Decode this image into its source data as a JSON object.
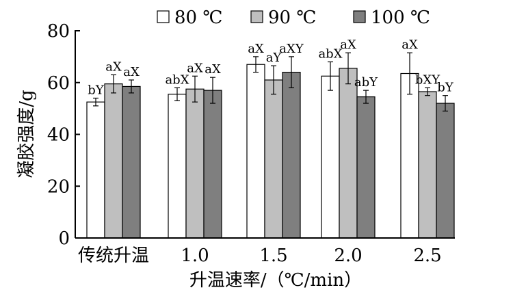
{
  "chart_data": {
    "type": "bar",
    "xlabel": "升温速率/（℃/min）",
    "ylabel": "凝胶强度/g",
    "ylim": [
      0,
      80
    ],
    "yticks": [
      0,
      20,
      40,
      60,
      80
    ],
    "categories": [
      "传统升温",
      "1.0",
      "1.5",
      "2.0",
      "2.5"
    ],
    "legend_position": "top",
    "grid": false,
    "series": [
      {
        "name": "80 ℃",
        "color": "#ffffff",
        "values": [
          52.5,
          55.5,
          67.0,
          62.5,
          63.5
        ],
        "errors": [
          1.5,
          2.5,
          3.0,
          5.5,
          8.0
        ],
        "labels": [
          "bY",
          "abX",
          "aX",
          "abX",
          "aX"
        ]
      },
      {
        "name": "90 ℃",
        "color": "#bfbfbf",
        "values": [
          59.5,
          57.5,
          61.0,
          65.5,
          56.5
        ],
        "errors": [
          3.5,
          5.0,
          5.5,
          6.0,
          1.5
        ],
        "labels": [
          "aX",
          "aX",
          "aY",
          "aX",
          "bXY"
        ]
      },
      {
        "name": "100 ℃",
        "color": "#7f7f7f",
        "values": [
          58.5,
          57.0,
          64.0,
          54.5,
          52.0
        ],
        "errors": [
          2.5,
          5.0,
          6.0,
          2.5,
          3.0
        ],
        "labels": [
          "aX",
          "aX",
          "aXY",
          "abY",
          "bY"
        ]
      }
    ]
  }
}
